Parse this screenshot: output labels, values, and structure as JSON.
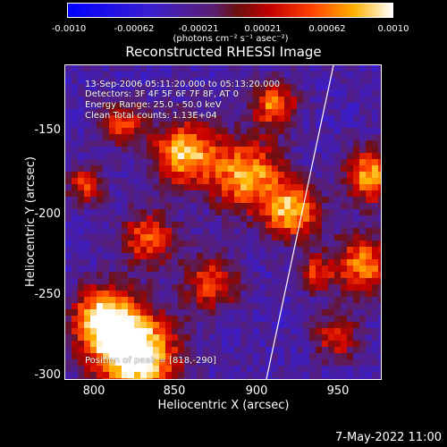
{
  "colorbar": {
    "ticks": [
      "-0.0010",
      "-0.00062",
      "-0.00021",
      "0.00021",
      "0.00062",
      "0.0010"
    ],
    "units": "(photons cm⁻² s⁻¹ asec⁻²)"
  },
  "title": "Reconstructed RHESSI Image",
  "annotations": {
    "time": "13-Sep-2006 05:11:20.000 to 05:13:20.000",
    "detectors": "Detectors: 3F 4F 5F 6F 7F 8F, AT 0",
    "energy": "Energy Range: 25.0 - 50.0 keV",
    "clean": "Clean    Total counts: 1.13E+04",
    "peak": "Position of peak = [818,-290]"
  },
  "axes": {
    "xlabel": "Heliocentric X (arcsec)",
    "ylabel": "Heliocentric Y (arcsec)",
    "xticks": [
      "800",
      "850",
      "900",
      "950"
    ],
    "yticks": [
      "-150",
      "-200",
      "-250",
      "-300"
    ]
  },
  "footer": {
    "date": "7-May-2022 11:00"
  },
  "colors": {
    "background": "#000000",
    "foreground": "#ffffff"
  }
}
